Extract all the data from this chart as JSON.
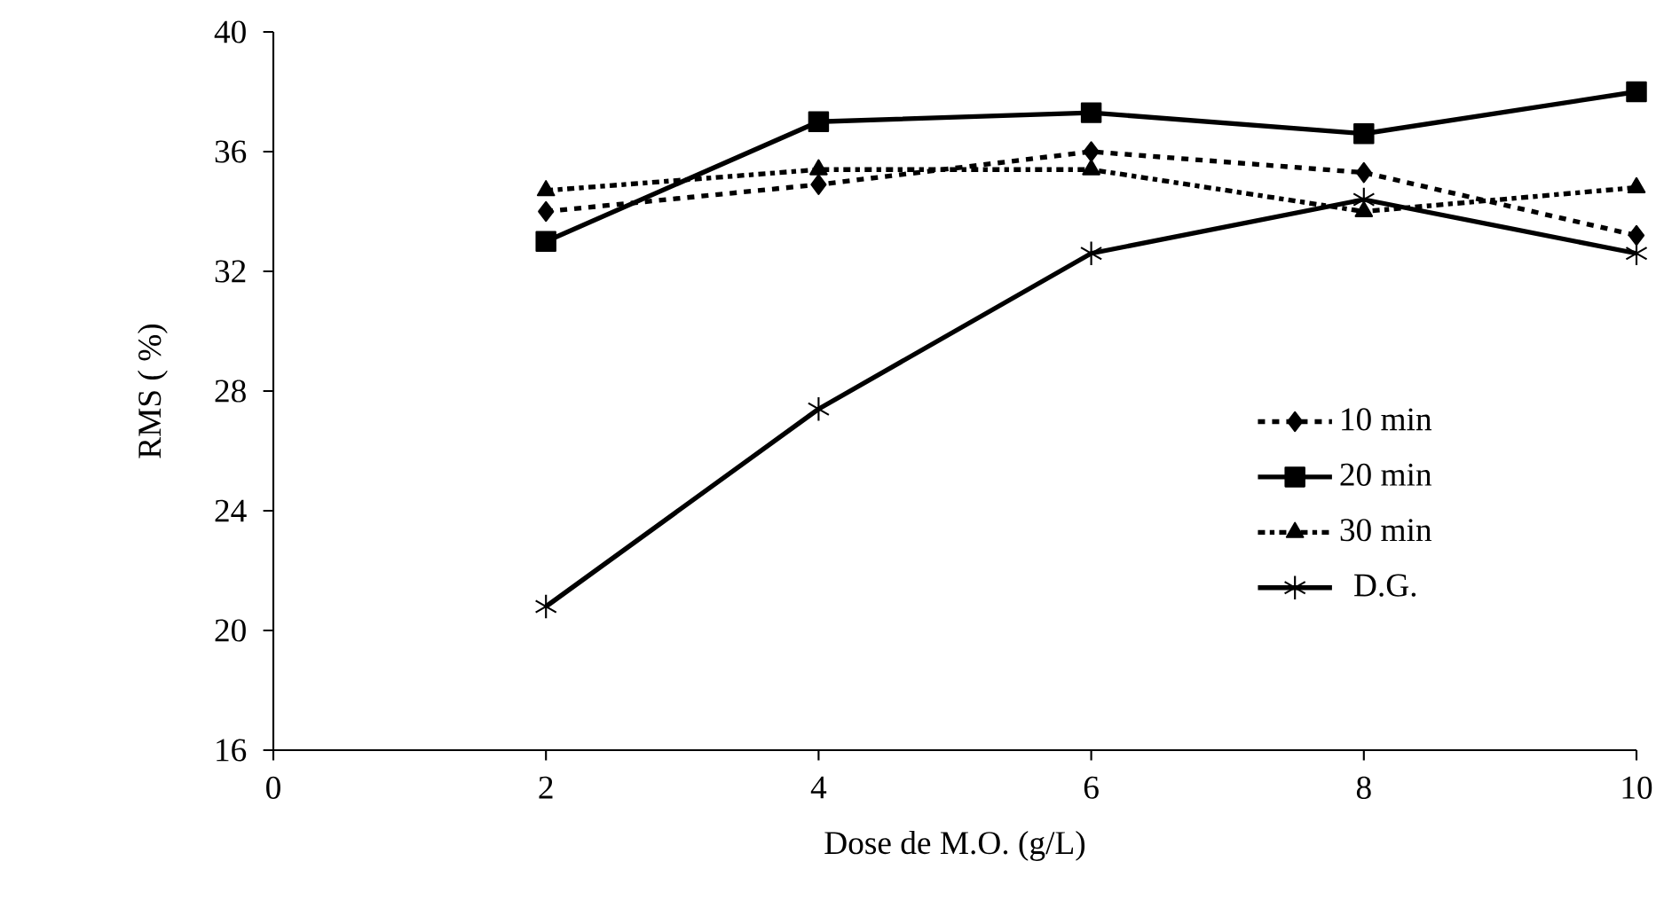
{
  "chart_data": {
    "type": "line",
    "xlabel": "Dose de M.O. (g/L)",
    "ylabel": "RMS ( %)",
    "x": [
      2,
      4,
      6,
      8,
      10
    ],
    "xlim": [
      0,
      10
    ],
    "xticks": [
      0,
      2,
      4,
      6,
      8,
      10
    ],
    "ylim": [
      16,
      40
    ],
    "yticks": [
      16,
      20,
      24,
      28,
      32,
      36,
      40
    ],
    "grid": false,
    "legend": "right",
    "series": [
      {
        "name": "10 min",
        "color": "#000000",
        "marker": "diamond",
        "line_style": "dashed",
        "values": [
          34.0,
          34.9,
          36.0,
          35.3,
          33.2
        ]
      },
      {
        "name": "20 min",
        "color": "#000000",
        "marker": "square",
        "line_style": "solid",
        "values": [
          33.0,
          37.0,
          37.3,
          36.6,
          38.0
        ]
      },
      {
        "name": "30 min",
        "color": "#000000",
        "marker": "triangle",
        "line_style": "dashdot",
        "values": [
          34.7,
          35.4,
          35.4,
          34.0,
          34.8
        ]
      },
      {
        "name": "D.G.",
        "color": "#000000",
        "marker": "cross",
        "line_style": "solid",
        "values": [
          20.8,
          27.4,
          32.6,
          34.4,
          32.6
        ]
      }
    ]
  }
}
